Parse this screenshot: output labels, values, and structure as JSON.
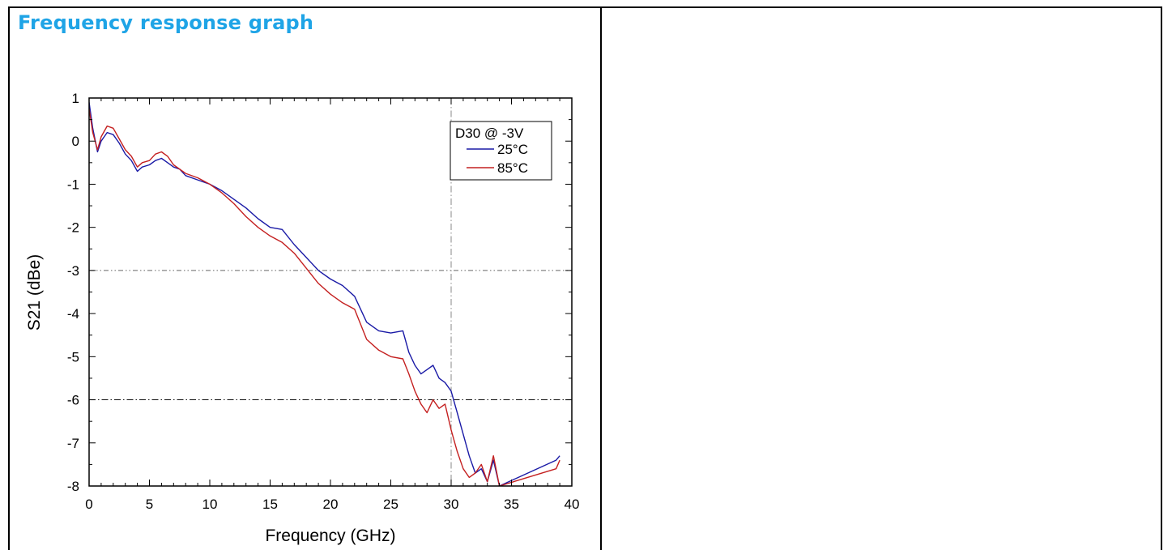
{
  "section_title": "Frequency response graph",
  "chart_data": {
    "type": "line",
    "xlabel": "Frequency (GHz)",
    "ylabel": "S21 (dBe)",
    "xlim": [
      0,
      40
    ],
    "ylim": [
      -8,
      1
    ],
    "xticks": [
      0,
      5,
      10,
      15,
      20,
      25,
      30,
      35,
      40
    ],
    "yticks": [
      1,
      0,
      -1,
      -2,
      -3,
      -4,
      -5,
      -6,
      -7,
      -8
    ],
    "xtick_labels": [
      "0",
      "5",
      "10",
      "15",
      "20",
      "25",
      "30",
      "35",
      "40"
    ],
    "ytick_labels": [
      "1",
      "0",
      "-1",
      "-2",
      "-3",
      "-4",
      "-5",
      "-6",
      "-7",
      "-8"
    ],
    "reference_lines": [
      {
        "axis": "y",
        "value": -3,
        "style": "dash-dot-dot"
      },
      {
        "axis": "y",
        "value": -6,
        "style": "dash-dot"
      },
      {
        "axis": "x",
        "value": 30,
        "style": "dash-dot"
      }
    ],
    "legend": {
      "title": "D30 @ -3V",
      "placement": "top-right"
    },
    "series": [
      {
        "name": "25°C",
        "color": "#1a1aa6",
        "x": [
          0,
          0.3,
          0.7,
          1.0,
          1.5,
          2.0,
          2.5,
          3.0,
          3.5,
          4.0,
          4.4,
          5.0,
          5.5,
          6.0,
          6.5,
          7.0,
          7.5,
          8.0,
          9.0,
          10.0,
          11.0,
          12.0,
          13.0,
          14.0,
          15.0,
          16.0,
          17.0,
          18.0,
          19.0,
          20.0,
          21.0,
          22.0,
          23.0,
          24.0,
          25.0,
          26.0,
          26.5,
          27.0,
          27.5,
          28.0,
          28.5,
          29.0,
          29.5,
          30.0,
          30.5,
          31.0,
          31.5,
          32.0,
          32.5,
          33.0,
          33.5,
          34.0,
          38.7,
          39.0
        ],
        "y": [
          0.9,
          0.3,
          -0.25,
          0.0,
          0.2,
          0.15,
          -0.05,
          -0.3,
          -0.45,
          -0.7,
          -0.6,
          -0.55,
          -0.45,
          -0.4,
          -0.5,
          -0.6,
          -0.65,
          -0.8,
          -0.9,
          -1.0,
          -1.15,
          -1.35,
          -1.55,
          -1.8,
          -2.0,
          -2.05,
          -2.4,
          -2.7,
          -3.0,
          -3.2,
          -3.35,
          -3.6,
          -4.2,
          -4.4,
          -4.45,
          -4.4,
          -4.9,
          -5.2,
          -5.4,
          -5.3,
          -5.2,
          -5.5,
          -5.6,
          -5.8,
          -6.3,
          -6.8,
          -7.3,
          -7.7,
          -7.6,
          -7.9,
          -7.4,
          -8.0,
          -7.4,
          -7.3
        ]
      },
      {
        "name": "85°C",
        "color": "#c42020",
        "x": [
          0,
          0.3,
          0.7,
          1.0,
          1.5,
          2.0,
          2.5,
          3.0,
          3.5,
          4.0,
          4.4,
          5.0,
          5.5,
          6.0,
          6.5,
          7.0,
          7.5,
          8.0,
          9.0,
          10.0,
          11.0,
          12.0,
          13.0,
          14.0,
          15.0,
          16.0,
          17.0,
          18.0,
          19.0,
          20.0,
          21.0,
          22.0,
          23.0,
          24.0,
          25.0,
          26.0,
          26.5,
          27.0,
          27.5,
          28.0,
          28.5,
          29.0,
          29.5,
          30.0,
          30.5,
          31.0,
          31.5,
          32.0,
          32.5,
          33.0,
          33.5,
          34.0,
          38.7,
          39.0
        ],
        "y": [
          0.75,
          0.2,
          -0.2,
          0.1,
          0.35,
          0.3,
          0.05,
          -0.2,
          -0.35,
          -0.6,
          -0.5,
          -0.45,
          -0.3,
          -0.25,
          -0.35,
          -0.55,
          -0.65,
          -0.75,
          -0.85,
          -1.0,
          -1.2,
          -1.45,
          -1.75,
          -2.0,
          -2.2,
          -2.35,
          -2.6,
          -2.95,
          -3.3,
          -3.55,
          -3.75,
          -3.9,
          -4.6,
          -4.85,
          -5.0,
          -5.05,
          -5.4,
          -5.8,
          -6.1,
          -6.3,
          -6.0,
          -6.2,
          -6.1,
          -6.7,
          -7.2,
          -7.6,
          -7.8,
          -7.7,
          -7.5,
          -7.9,
          -7.3,
          -8.0,
          -7.6,
          -7.4
        ]
      }
    ]
  }
}
